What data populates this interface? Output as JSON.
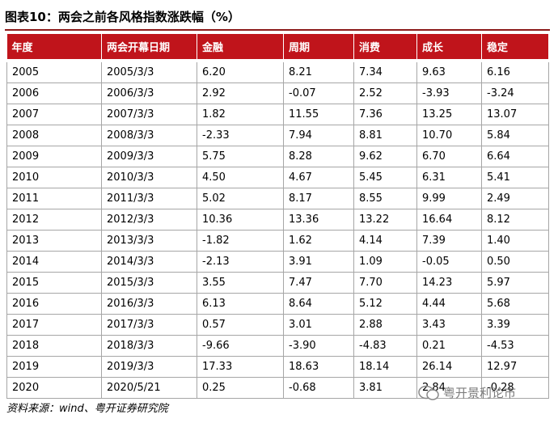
{
  "title": "图表10：两会之前各风格指数涨跌幅（%）",
  "table": {
    "header": [
      "年度",
      "两会开幕日期",
      "金融",
      "周期",
      "消费",
      "成长",
      "稳定"
    ],
    "rows": [
      [
        "2005",
        "2005/3/3",
        "6.20",
        "8.21",
        "7.34",
        "9.63",
        "6.16"
      ],
      [
        "2006",
        "2006/3/3",
        "2.92",
        "-0.07",
        "2.52",
        "-3.93",
        "-3.24"
      ],
      [
        "2007",
        "2007/3/3",
        "1.82",
        "11.55",
        "7.36",
        "13.25",
        "13.07"
      ],
      [
        "2008",
        "2008/3/3",
        "-2.33",
        "7.94",
        "8.81",
        "10.70",
        "5.84"
      ],
      [
        "2009",
        "2009/3/3",
        "5.75",
        "8.28",
        "9.62",
        "6.70",
        "6.64"
      ],
      [
        "2010",
        "2010/3/3",
        "4.50",
        "4.67",
        "5.45",
        "6.31",
        "5.41"
      ],
      [
        "2011",
        "2011/3/3",
        "5.02",
        "8.17",
        "8.55",
        "9.99",
        "2.49"
      ],
      [
        "2012",
        "2012/3/3",
        "10.36",
        "13.36",
        "13.22",
        "16.64",
        "8.12"
      ],
      [
        "2013",
        "2013/3/3",
        "-1.82",
        "1.62",
        "4.14",
        "7.39",
        "1.40"
      ],
      [
        "2014",
        "2014/3/3",
        "-2.13",
        "3.91",
        "1.09",
        "-0.05",
        "0.50"
      ],
      [
        "2015",
        "2015/3/3",
        "3.55",
        "7.47",
        "7.70",
        "14.23",
        "5.97"
      ],
      [
        "2016",
        "2016/3/3",
        "6.13",
        "8.64",
        "5.12",
        "4.44",
        "5.68"
      ],
      [
        "2017",
        "2017/3/3",
        "0.57",
        "3.01",
        "2.88",
        "3.43",
        "3.39"
      ],
      [
        "2018",
        "2018/3/3",
        "-9.66",
        "-3.90",
        "-4.83",
        "0.21",
        "-4.53"
      ],
      [
        "2019",
        "2019/3/3",
        "17.33",
        "18.63",
        "18.14",
        "26.14",
        "12.97"
      ],
      [
        "2020",
        "2020/5/21",
        "0.25",
        "-0.68",
        "3.81",
        "2.84",
        "-0.28"
      ]
    ]
  },
  "source": "资料来源：wind、粤开证券研究院",
  "watermark": "粤开景利论市"
}
